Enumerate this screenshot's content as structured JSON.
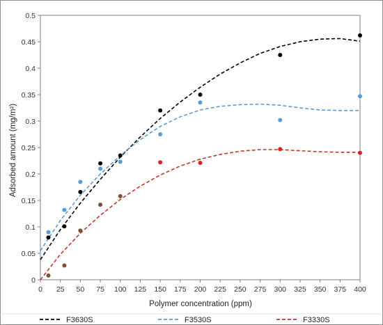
{
  "chart_data": {
    "type": "scatter",
    "title": "",
    "xlabel": "Polymer concentration (ppm)",
    "ylabel": "Adsorbed amount (mg/m²)",
    "xlim": [
      0,
      400
    ],
    "ylim": [
      0,
      0.5
    ],
    "x_ticks": [
      "0",
      "25",
      "50",
      "75",
      "100",
      "125",
      "150",
      "175",
      "200",
      "225",
      "250",
      "275",
      "300",
      "325",
      "350",
      "375",
      "400"
    ],
    "y_ticks": [
      "0",
      "0.05",
      "0.1",
      "0.15",
      "0.2",
      "0.25",
      "0.3",
      "0.35",
      "0.4",
      "0.45",
      "0.5"
    ],
    "grid": false,
    "legend_position": "bottom",
    "series": [
      {
        "name": "F3630S",
        "color": "#000000",
        "point_color": "#000000",
        "x": [
          10,
          30,
          50,
          75,
          100,
          150,
          200,
          300,
          400
        ],
        "y": [
          0.08,
          0.101,
          0.166,
          0.22,
          0.235,
          0.32,
          0.35,
          0.425,
          0.462
        ],
        "trend_x": [
          0,
          25,
          50,
          75,
          100,
          125,
          150,
          175,
          200,
          225,
          250,
          275,
          300,
          325,
          350,
          375,
          400
        ],
        "trend_y": [
          0.038,
          0.095,
          0.145,
          0.19,
          0.232,
          0.27,
          0.305,
          0.336,
          0.364,
          0.389,
          0.41,
          0.428,
          0.441,
          0.45,
          0.455,
          0.456,
          0.451
        ]
      },
      {
        "name": "F3530S",
        "color": "#5b9bd5",
        "point_color": "#5b9bd5",
        "x": [
          10,
          30,
          50,
          75,
          100,
          150,
          200,
          300,
          400
        ],
        "y": [
          0.09,
          0.132,
          0.185,
          0.21,
          0.223,
          0.275,
          0.335,
          0.302,
          0.347
        ],
        "trend_x": [
          0,
          25,
          50,
          75,
          100,
          125,
          150,
          175,
          200,
          225,
          250,
          275,
          300,
          325,
          350,
          375,
          400
        ],
        "trend_y": [
          0.055,
          0.112,
          0.16,
          0.2,
          0.235,
          0.265,
          0.29,
          0.308,
          0.321,
          0.328,
          0.331,
          0.332,
          0.33,
          0.325,
          0.321,
          0.32,
          0.32
        ]
      },
      {
        "name": "F3330S",
        "color": "#c0392b",
        "point_color": "#e02020",
        "x": [
          10,
          30,
          50,
          75,
          100,
          150,
          200,
          300,
          400
        ],
        "y": [
          0.008,
          0.027,
          0.093,
          0.142,
          0.158,
          0.222,
          0.221,
          0.247,
          0.24
        ],
        "trend_x": [
          0,
          25,
          50,
          75,
          100,
          125,
          150,
          175,
          200,
          225,
          250,
          275,
          300,
          325,
          350,
          375,
          400
        ],
        "trend_y": [
          0.0,
          0.048,
          0.088,
          0.122,
          0.152,
          0.177,
          0.198,
          0.215,
          0.228,
          0.237,
          0.243,
          0.246,
          0.246,
          0.244,
          0.242,
          0.241,
          0.241
        ]
      }
    ],
    "point_colors_low_concentration": "#7a5230"
  }
}
